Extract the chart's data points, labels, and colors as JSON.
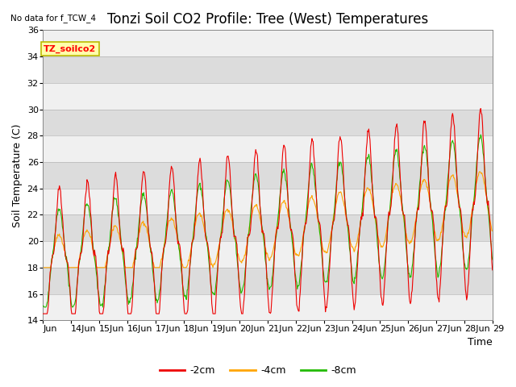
{
  "title": "Tonzi Soil CO2 Profile: Tree (West) Temperatures",
  "no_data_text": "No data for f_TCW_4",
  "ylabel": "Soil Temperature (C)",
  "xlabel": "Time",
  "ylim": [
    14,
    36
  ],
  "yticks": [
    14,
    16,
    18,
    20,
    22,
    24,
    26,
    28,
    30,
    32,
    34,
    36
  ],
  "x_labels": [
    "Jun",
    "14Jun",
    "15Jun",
    "16Jun",
    "17Jun",
    "18Jun",
    "19Jun",
    "20Jun",
    "21Jun",
    "22Jun",
    "23Jun",
    "24Jun",
    "25Jun",
    "26Jun",
    "27Jun",
    "28Jun",
    "29"
  ],
  "colors": {
    "red": "#EE0000",
    "orange": "#FFA500",
    "green": "#22BB00"
  },
  "legend_label": "TZ_soilco2",
  "line_labels": [
    "-2cm",
    "-4cm",
    "-8cm"
  ],
  "plot_bg": "#DCDCDC",
  "band_color": "#F0F0F0",
  "title_fontsize": 12,
  "axis_fontsize": 9,
  "tick_fontsize": 8,
  "legend_box_color": "#FFFFAA",
  "legend_box_edge": "#BBBB00"
}
